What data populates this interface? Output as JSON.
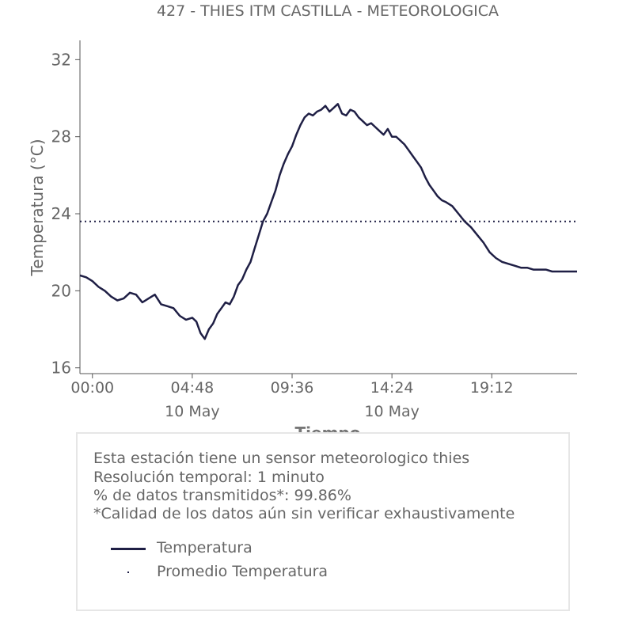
{
  "chart_data": {
    "type": "line",
    "title": "427 - THIES ITM CASTILLA - METEOROLOGICA",
    "xlabel": "Tiempo",
    "ylabel": "Temperatura (°C)",
    "ylim": [
      15.7,
      33.0
    ],
    "xlim": [
      -0.6,
      23.3
    ],
    "yticks": [
      16,
      20,
      24,
      28,
      32
    ],
    "xticks": [
      {
        "hour": 0.0,
        "label": "00:00",
        "sublabel": ""
      },
      {
        "hour": 4.8,
        "label": "04:48",
        "sublabel": "10 May"
      },
      {
        "hour": 9.6,
        "label": "09:36",
        "sublabel": ""
      },
      {
        "hour": 14.4,
        "label": "14:24",
        "sublabel": "10 May"
      },
      {
        "hour": 19.2,
        "label": "19:12",
        "sublabel": ""
      }
    ],
    "grid": false,
    "series": [
      {
        "name": "Temperatura",
        "style": "solid",
        "color": "#1f1f45",
        "x_hours": [
          -0.6,
          -0.3,
          0.0,
          0.3,
          0.6,
          0.9,
          1.2,
          1.5,
          1.8,
          2.1,
          2.4,
          2.7,
          3.0,
          3.3,
          3.6,
          3.9,
          4.2,
          4.5,
          4.8,
          5.0,
          5.2,
          5.4,
          5.6,
          5.8,
          6.0,
          6.2,
          6.4,
          6.6,
          6.8,
          7.0,
          7.2,
          7.4,
          7.6,
          7.8,
          8.0,
          8.2,
          8.4,
          8.6,
          8.8,
          9.0,
          9.2,
          9.4,
          9.6,
          9.8,
          10.0,
          10.2,
          10.4,
          10.6,
          10.8,
          11.0,
          11.2,
          11.4,
          11.6,
          11.8,
          12.0,
          12.2,
          12.4,
          12.6,
          12.8,
          13.0,
          13.2,
          13.4,
          13.6,
          13.8,
          14.0,
          14.2,
          14.4,
          14.6,
          14.8,
          15.0,
          15.2,
          15.4,
          15.6,
          15.8,
          16.0,
          16.2,
          16.4,
          16.6,
          16.8,
          17.0,
          17.3,
          17.6,
          17.9,
          18.2,
          18.5,
          18.8,
          19.1,
          19.4,
          19.7,
          20.0,
          20.3,
          20.6,
          20.9,
          21.2,
          21.5,
          21.8,
          22.1,
          22.4,
          22.7,
          23.0,
          23.3
        ],
        "values": [
          20.8,
          20.7,
          20.5,
          20.2,
          20.0,
          19.7,
          19.5,
          19.6,
          19.9,
          19.8,
          19.4,
          19.6,
          19.8,
          19.3,
          19.2,
          19.1,
          18.7,
          18.5,
          18.6,
          18.4,
          17.8,
          17.5,
          18.0,
          18.3,
          18.8,
          19.1,
          19.4,
          19.3,
          19.7,
          20.3,
          20.6,
          21.1,
          21.5,
          22.2,
          22.9,
          23.6,
          24.0,
          24.6,
          25.2,
          26.0,
          26.6,
          27.1,
          27.5,
          28.1,
          28.6,
          29.0,
          29.2,
          29.1,
          29.3,
          29.4,
          29.6,
          29.3,
          29.5,
          29.7,
          29.2,
          29.1,
          29.4,
          29.3,
          29.0,
          28.8,
          28.6,
          28.7,
          28.5,
          28.3,
          28.1,
          28.4,
          28.0,
          28.0,
          27.8,
          27.6,
          27.3,
          27.0,
          26.7,
          26.4,
          25.9,
          25.5,
          25.2,
          24.9,
          24.7,
          24.6,
          24.4,
          24.0,
          23.6,
          23.3,
          22.9,
          22.5,
          22.0,
          21.7,
          21.5,
          21.4,
          21.3,
          21.2,
          21.2,
          21.1,
          21.1,
          21.1,
          21.0,
          21.0,
          21.0,
          21.0,
          21.0
        ]
      },
      {
        "name": "Promedio Temperatura",
        "style": "dotted",
        "color": "#1f1f45",
        "value": 23.6
      }
    ],
    "legend": "inside info box, bottom-left"
  },
  "info": {
    "line1": "Esta estación tiene un sensor meteorologico thies",
    "line2": "Resolución temporal: 1 minuto",
    "line3": "% de datos transmitidos*: 99.86%",
    "line4": "*Calidad de los datos aún sin verificar exhaustivamente"
  },
  "colors": {
    "text": "#666666",
    "line": "#1f1f45",
    "axis": "#555555"
  }
}
